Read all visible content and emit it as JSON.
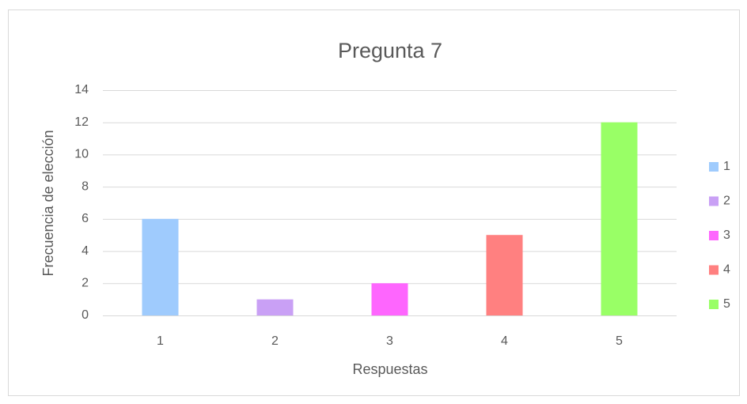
{
  "chart_data": {
    "type": "bar",
    "title": "Pregunta 7",
    "x_label": "Respuestas",
    "y_label": "Frecuencia de elección",
    "categories": [
      "1",
      "2",
      "3",
      "4",
      "5"
    ],
    "values": [
      6,
      1,
      2,
      5,
      12
    ],
    "colors": [
      "#9fcbfd",
      "#c9a0f5",
      "#fe66fe",
      "#ff8080",
      "#99ff66"
    ],
    "ylim": [
      0,
      14
    ],
    "yticks": [
      0,
      2,
      4,
      6,
      8,
      10,
      12,
      14
    ],
    "grid": true,
    "legend": "right"
  }
}
